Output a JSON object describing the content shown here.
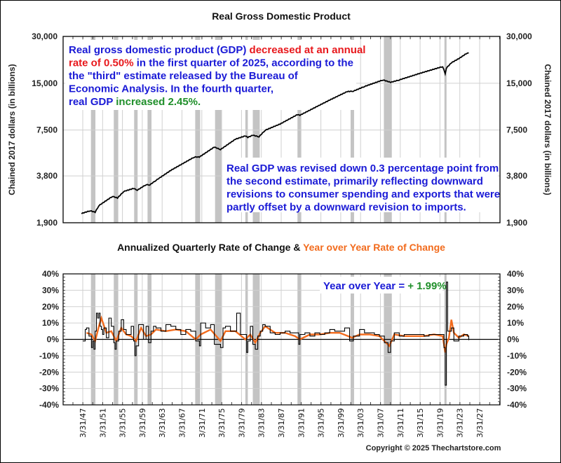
{
  "chart_data": [
    {
      "type": "line",
      "title": "Real Gross Domestic Product",
      "ylabel": "Chained 2017 dollars (in billions)",
      "yscale": "log",
      "ylim": [
        1900,
        30000
      ],
      "yticks": [
        30000,
        15000,
        7500,
        3800,
        1900
      ],
      "ytick_labels": [
        "30,000",
        "15,000",
        "7,500",
        "3,800",
        "1,900"
      ],
      "xlim": [
        1943.5,
        2030.5
      ],
      "series": [
        {
          "name": "Real GDP",
          "color": "#000000",
          "x": [
            1947.0,
            1948.75,
            1949.75,
            1950.5,
            1953.25,
            1954.25,
            1955.5,
            1957.5,
            1958.25,
            1960.0,
            1960.75,
            1962.0,
            1965.0,
            1969.75,
            1970.75,
            1973.75,
            1975.0,
            1978.0,
            1980.0,
            1980.5,
            1981.5,
            1982.75,
            1984.0,
            1987.0,
            1990.5,
            1991.0,
            1994.0,
            1997.0,
            2000.5,
            2001.75,
            2004.0,
            2007.75,
            2009.25,
            2011.0,
            2015.0,
            2019.75,
            2020.25,
            2020.5,
            2021.5,
            2023.0,
            2024.75,
            2025.0
          ],
          "y": [
            2180,
            2270,
            2220,
            2450,
            2810,
            2740,
            3020,
            3160,
            3080,
            3340,
            3330,
            3560,
            4130,
            5030,
            5030,
            5830,
            5620,
            6550,
            6880,
            6730,
            6950,
            6790,
            7480,
            8200,
            9430,
            9340,
            10460,
            11700,
            13250,
            13340,
            14300,
            15750,
            15200,
            15750,
            17300,
            19200,
            17300,
            18800,
            20300,
            21600,
            23540,
            23510
          ]
        }
      ],
      "recessions": [
        [
          1948.9,
          1949.8
        ],
        [
          1953.5,
          1954.4
        ],
        [
          1957.6,
          1958.3
        ],
        [
          1960.3,
          1961.1
        ],
        [
          1969.9,
          1970.9
        ],
        [
          1973.9,
          1975.2
        ],
        [
          1980.0,
          1980.5
        ],
        [
          1981.5,
          1982.9
        ],
        [
          1990.5,
          1991.2
        ],
        [
          2001.2,
          2001.9
        ],
        [
          2007.9,
          2009.5
        ],
        [
          2020.1,
          2020.3
        ]
      ],
      "annotations": [
        {
          "segments": [
            [
              {
                "t": "Real gross domestic product (GDP) ",
                "c": "#1a1ad6"
              },
              {
                "t": "decreased at an annual",
                "c": "#e8181c"
              }
            ],
            [
              {
                "t": "rate of 0.50%",
                "c": "#e8181c"
              },
              {
                "t": " in the first quarter of 2025, according to the",
                "c": "#1a1ad6"
              }
            ],
            [
              {
                "t": "the \"third\" estimate released by the Bureau of",
                "c": "#1a1ad6"
              }
            ],
            [
              {
                "t": "Economic Analysis. In the fourth quarter,",
                "c": "#1a1ad6"
              }
            ],
            [
              {
                "t": "real GDP ",
                "c": "#1a1ad6"
              },
              {
                "t": "increased 2.45%.",
                "c": "#1f8f2a"
              }
            ]
          ]
        },
        {
          "segments": [
            [
              {
                "t": "Real GDP was revised down 0.3 percentage point from",
                "c": "#1a1ad6"
              }
            ],
            [
              {
                "t": "the second estimate, primarily reflecting downward",
                "c": "#1a1ad6"
              }
            ],
            [
              {
                "t": "revisions to consumer spending and exports that were",
                "c": "#1a1ad6"
              }
            ],
            [
              {
                "t": "partly offset by a downward revision to imports.",
                "c": "#1a1ad6"
              }
            ]
          ]
        }
      ]
    },
    {
      "type": "line",
      "title_parts": [
        {
          "t": "Annualized Quarterly Rate of Change & ",
          "c": "#111111"
        },
        {
          "t": "Year over Year Rate of Change",
          "c": "#f26b1d"
        }
      ],
      "ylim": [
        -40,
        40
      ],
      "yticks": [
        40,
        30,
        20,
        10,
        0,
        -10,
        -20,
        -30,
        -40
      ],
      "ytick_labels": [
        "40%",
        "30%",
        "20%",
        "10%",
        "0%",
        "-10%",
        "-20%",
        "-30%",
        "-40%"
      ],
      "xlim": [
        1943.5,
        2030.5
      ],
      "xtick_labels": [
        "3/31/47",
        "3/31/51",
        "3/31/55",
        "3/31/59",
        "3/31/63",
        "3/31/67",
        "3/31/71",
        "3/31/75",
        "3/31/79",
        "3/31/83",
        "3/31/87",
        "3/31/91",
        "3/31/95",
        "3/31/99",
        "3/31/03",
        "3/31/07",
        "3/31/11",
        "3/31/15",
        "3/31/19",
        "3/31/23",
        "3/31/27"
      ],
      "series": [
        {
          "name": "Annualized Quarterly Rate of Change",
          "color": "#000000",
          "x": [
            1947.25,
            1947.75,
            1948.0,
            1948.5,
            1949.0,
            1949.25,
            1949.5,
            1949.75,
            1950.0,
            1950.25,
            1950.5,
            1950.75,
            1951.0,
            1951.25,
            1951.5,
            1952.0,
            1952.5,
            1953.0,
            1953.5,
            1953.75,
            1954.0,
            1954.5,
            1955.0,
            1955.5,
            1956.0,
            1956.5,
            1957.0,
            1957.5,
            1957.75,
            1958.0,
            1958.5,
            1959.0,
            1959.5,
            1960.0,
            1960.5,
            1961.0,
            1961.5,
            1962.0,
            1963.0,
            1964.0,
            1965.0,
            1966.0,
            1967.0,
            1968.0,
            1969.0,
            1970.0,
            1970.75,
            1971.0,
            1972.0,
            1973.0,
            1973.75,
            1974.5,
            1975.0,
            1975.5,
            1976.0,
            1977.0,
            1978.25,
            1979.0,
            1980.25,
            1980.5,
            1981.0,
            1981.5,
            1982.0,
            1982.5,
            1983.0,
            1983.5,
            1984.0,
            1985.0,
            1986.0,
            1987.0,
            1988.0,
            1989.0,
            1990.75,
            1991.0,
            1992.0,
            1993.0,
            1994.0,
            1995.0,
            1996.0,
            1997.0,
            1998.0,
            1999.0,
            2000.0,
            2001.0,
            2001.75,
            2002.0,
            2003.0,
            2004.0,
            2005.0,
            2006.0,
            2007.0,
            2008.0,
            2008.75,
            2009.25,
            2010.0,
            2011.0,
            2012.0,
            2013.0,
            2014.0,
            2015.0,
            2016.0,
            2017.0,
            2018.0,
            2019.0,
            2020.0,
            2020.25,
            2020.5,
            2020.75,
            2021.0,
            2021.5,
            2022.0,
            2022.5,
            2023.0,
            2024.0,
            2024.75,
            2025.0
          ],
          "y": [
            -1,
            6,
            7,
            2,
            -5,
            -1,
            -6,
            5,
            16,
            13,
            16,
            8,
            6,
            3,
            7,
            1,
            13,
            8,
            -2,
            -6,
            -1,
            5,
            12,
            6,
            3,
            3,
            8,
            -1,
            -10,
            -4,
            9,
            9,
            0,
            8,
            -2,
            5,
            8,
            7,
            5,
            9,
            8,
            6,
            3,
            6,
            5,
            -1,
            -4,
            10,
            7,
            9,
            -3,
            -3,
            -5,
            7,
            8,
            5,
            16,
            3,
            -8,
            -1,
            8,
            -3,
            -6,
            2,
            5,
            9,
            8,
            4,
            3,
            4,
            5,
            4,
            -3,
            3,
            4,
            2,
            4,
            3,
            4,
            6,
            5,
            5,
            7,
            -1,
            2,
            2,
            6,
            4,
            4,
            3,
            2,
            -2,
            -8,
            -1,
            4,
            2,
            3,
            3,
            3,
            3,
            2,
            3,
            3,
            3,
            -5,
            -28,
            35,
            5,
            5,
            7,
            -1,
            -1,
            2,
            3,
            2,
            -0.5
          ],
          "note": "approximate"
        },
        {
          "name": "Year over Year Rate of Change",
          "color": "#f26b1d",
          "x": [
            1948.0,
            1949.0,
            1949.75,
            1950.5,
            1951.0,
            1952.0,
            1953.0,
            1954.0,
            1955.0,
            1956.0,
            1957.0,
            1958.0,
            1959.0,
            1960.0,
            1961.0,
            1962.0,
            1964.0,
            1966.0,
            1968.0,
            1970.0,
            1971.0,
            1973.0,
            1975.0,
            1976.0,
            1978.0,
            1980.0,
            1981.0,
            1982.0,
            1983.0,
            1984.0,
            1986.0,
            1988.0,
            1990.0,
            1991.0,
            1993.0,
            1995.0,
            1997.0,
            1999.0,
            2001.5,
            2003.0,
            2005.0,
            2007.0,
            2009.0,
            2010.0,
            2012.0,
            2014.0,
            2016.0,
            2018.0,
            2019.75,
            2020.25,
            2020.5,
            2021.0,
            2021.5,
            2022.0,
            2023.0,
            2024.0,
            2025.0
          ],
          "y": [
            4,
            3,
            -1,
            8,
            13,
            4,
            5,
            -1,
            7,
            3,
            2,
            -1,
            7,
            2,
            3,
            6,
            5,
            6,
            5,
            0,
            3,
            6,
            -1,
            5,
            5,
            0,
            3,
            -2,
            4,
            8,
            4,
            4,
            2,
            0,
            3,
            3,
            4,
            4,
            1,
            3,
            3,
            2,
            -4,
            3,
            2,
            2,
            2,
            3,
            2,
            -8,
            -3,
            1,
            12,
            4,
            1,
            3,
            2
          ],
          "note": "approximate"
        }
      ],
      "recessions": [
        [
          1948.9,
          1949.8
        ],
        [
          1953.5,
          1954.4
        ],
        [
          1957.6,
          1958.3
        ],
        [
          1960.3,
          1961.1
        ],
        [
          1969.9,
          1970.9
        ],
        [
          1973.9,
          1975.2
        ],
        [
          1980.0,
          1980.5
        ],
        [
          1981.5,
          1982.9
        ],
        [
          1990.5,
          1991.2
        ],
        [
          2001.2,
          2001.9
        ],
        [
          2007.9,
          2009.5
        ],
        [
          2020.1,
          2020.3
        ]
      ],
      "annotation": [
        {
          "t": "Year over Year = ",
          "c": "#1a1ad6"
        },
        {
          "t": "+ 1.99%",
          "c": "#1f8f2a"
        }
      ]
    }
  ],
  "footer": {
    "copyright": "Copyright © 2025 Thechartstore.com"
  }
}
